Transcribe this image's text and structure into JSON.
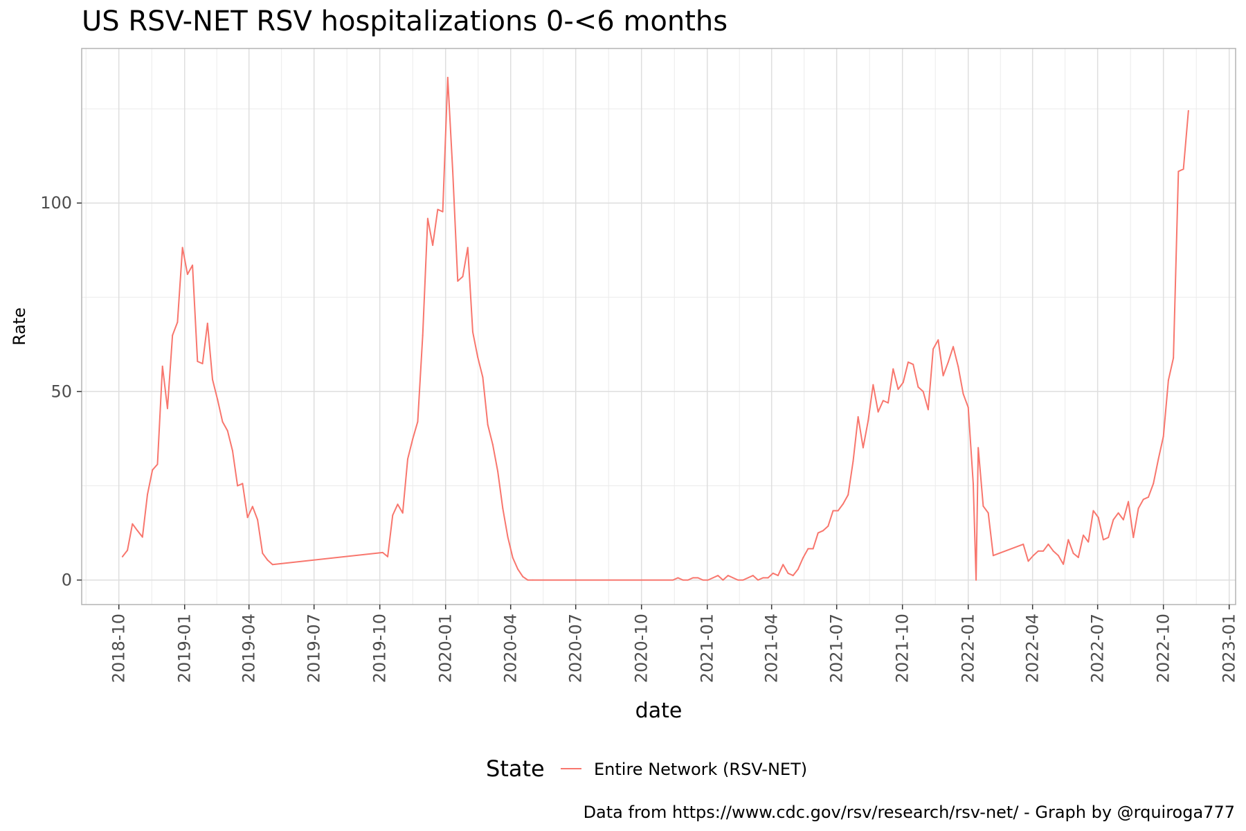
{
  "chart_data": {
    "type": "line",
    "title": "US RSV-NET RSV hospitalizations 0-<6 months",
    "xlabel": "date",
    "ylabel": "Rate",
    "caption": "Data from https://www.cdc.gov/rsv/research/rsv-net/ - Graph by @rquiroga777",
    "legend": {
      "title": "State",
      "position": "bottom"
    },
    "x_scale": "date",
    "xlim": [
      "2018-08-10",
      "2023-01-10"
    ],
    "ylim": [
      -6.5,
      141
    ],
    "grid": true,
    "x_ticks": [
      "2018-10",
      "2019-01",
      "2019-04",
      "2019-07",
      "2019-10",
      "2020-01",
      "2020-04",
      "2020-07",
      "2020-10",
      "2021-01",
      "2021-04",
      "2021-07",
      "2021-10",
      "2022-01",
      "2022-04",
      "2022-07",
      "2022-10",
      "2023-01"
    ],
    "y_ticks": [
      0,
      50,
      100
    ],
    "series": [
      {
        "name": "Entire Network (RSV-NET)",
        "color": "#F8766D",
        "points": [
          [
            "2018-10-06",
            6.2
          ],
          [
            "2018-10-13",
            7.9
          ],
          [
            "2018-10-20",
            14.9
          ],
          [
            "2018-10-27",
            13.1
          ],
          [
            "2018-11-03",
            11.4
          ],
          [
            "2018-11-10",
            22.7
          ],
          [
            "2018-11-17",
            29.2
          ],
          [
            "2018-11-24",
            30.7
          ],
          [
            "2018-12-01",
            56.7
          ],
          [
            "2018-12-08",
            45.5
          ],
          [
            "2018-12-15",
            64.9
          ],
          [
            "2018-12-22",
            68.4
          ],
          [
            "2018-12-29",
            88.2
          ],
          [
            "2019-01-05",
            81.1
          ],
          [
            "2019-01-12",
            83.5
          ],
          [
            "2019-01-19",
            58.0
          ],
          [
            "2019-01-26",
            57.4
          ],
          [
            "2019-02-02",
            68.1
          ],
          [
            "2019-02-09",
            53.2
          ],
          [
            "2019-02-16",
            47.9
          ],
          [
            "2019-02-23",
            42.0
          ],
          [
            "2019-03-02",
            39.6
          ],
          [
            "2019-03-09",
            34.3
          ],
          [
            "2019-03-16",
            25.0
          ],
          [
            "2019-03-23",
            25.6
          ],
          [
            "2019-03-30",
            16.6
          ],
          [
            "2019-04-06",
            19.5
          ],
          [
            "2019-04-13",
            16.0
          ],
          [
            "2019-04-20",
            7.1
          ],
          [
            "2019-04-27",
            5.3
          ],
          [
            "2019-05-04",
            4.1
          ],
          [
            "2019-10-05",
            7.3
          ],
          [
            "2019-10-12",
            6.2
          ],
          [
            "2019-10-19",
            17.2
          ],
          [
            "2019-10-26",
            20.1
          ],
          [
            "2019-11-02",
            17.8
          ],
          [
            "2019-11-09",
            32.1
          ],
          [
            "2019-11-16",
            37.4
          ],
          [
            "2019-11-23",
            42.0
          ],
          [
            "2019-11-30",
            64.9
          ],
          [
            "2019-12-07",
            95.9
          ],
          [
            "2019-12-14",
            88.8
          ],
          [
            "2019-12-21",
            98.3
          ],
          [
            "2019-12-28",
            97.7
          ],
          [
            "2020-01-04",
            133.3
          ],
          [
            "2020-01-11",
            108.4
          ],
          [
            "2020-01-18",
            79.3
          ],
          [
            "2020-01-25",
            80.5
          ],
          [
            "2020-02-01",
            88.2
          ],
          [
            "2020-02-08",
            65.8
          ],
          [
            "2020-02-15",
            59.1
          ],
          [
            "2020-02-22",
            53.8
          ],
          [
            "2020-02-29",
            41.2
          ],
          [
            "2020-03-07",
            35.9
          ],
          [
            "2020-03-14",
            28.8
          ],
          [
            "2020-03-21",
            19.0
          ],
          [
            "2020-03-28",
            11.4
          ],
          [
            "2020-04-04",
            5.9
          ],
          [
            "2020-04-11",
            2.9
          ],
          [
            "2020-04-18",
            0.9
          ],
          [
            "2020-04-25",
            0.0
          ],
          [
            "2020-05-02",
            0.0
          ],
          [
            "2020-11-14",
            0.0
          ],
          [
            "2020-11-21",
            0.6
          ],
          [
            "2020-11-28",
            0.0
          ],
          [
            "2020-12-05",
            0.0
          ],
          [
            "2020-12-12",
            0.6
          ],
          [
            "2020-12-19",
            0.6
          ],
          [
            "2020-12-26",
            0.0
          ],
          [
            "2021-01-02",
            0.0
          ],
          [
            "2021-01-09",
            0.6
          ],
          [
            "2021-01-16",
            1.2
          ],
          [
            "2021-01-23",
            0.0
          ],
          [
            "2021-01-30",
            1.2
          ],
          [
            "2021-02-06",
            0.6
          ],
          [
            "2021-02-13",
            0.0
          ],
          [
            "2021-02-20",
            0.0
          ],
          [
            "2021-02-27",
            0.6
          ],
          [
            "2021-03-06",
            1.2
          ],
          [
            "2021-03-13",
            0.0
          ],
          [
            "2021-03-20",
            0.6
          ],
          [
            "2021-03-27",
            0.6
          ],
          [
            "2021-04-03",
            1.8
          ],
          [
            "2021-04-10",
            1.2
          ],
          [
            "2021-04-17",
            4.1
          ],
          [
            "2021-04-24",
            1.8
          ],
          [
            "2021-05-01",
            1.2
          ],
          [
            "2021-05-08",
            2.9
          ],
          [
            "2021-05-15",
            5.9
          ],
          [
            "2021-05-22",
            8.3
          ],
          [
            "2021-05-29",
            8.3
          ],
          [
            "2021-06-05",
            12.5
          ],
          [
            "2021-06-12",
            13.1
          ],
          [
            "2021-06-19",
            14.3
          ],
          [
            "2021-06-26",
            18.4
          ],
          [
            "2021-07-03",
            18.4
          ],
          [
            "2021-07-10",
            20.2
          ],
          [
            "2021-07-17",
            22.6
          ],
          [
            "2021-07-24",
            31.5
          ],
          [
            "2021-07-31",
            43.3
          ],
          [
            "2021-08-07",
            35.1
          ],
          [
            "2021-08-14",
            42.2
          ],
          [
            "2021-08-21",
            51.8
          ],
          [
            "2021-08-28",
            44.6
          ],
          [
            "2021-09-04",
            47.6
          ],
          [
            "2021-09-11",
            47.0
          ],
          [
            "2021-09-18",
            56.0
          ],
          [
            "2021-09-25",
            50.6
          ],
          [
            "2021-10-02",
            52.4
          ],
          [
            "2021-10-09",
            57.8
          ],
          [
            "2021-10-16",
            57.2
          ],
          [
            "2021-10-23",
            51.2
          ],
          [
            "2021-10-30",
            50.0
          ],
          [
            "2021-11-06",
            45.2
          ],
          [
            "2021-11-13",
            61.3
          ],
          [
            "2021-11-20",
            63.7
          ],
          [
            "2021-11-27",
            54.2
          ],
          [
            "2021-12-04",
            57.8
          ],
          [
            "2021-12-11",
            61.9
          ],
          [
            "2021-12-18",
            56.6
          ],
          [
            "2021-12-25",
            49.4
          ],
          [
            "2022-01-01",
            45.8
          ],
          [
            "2022-01-08",
            25.6
          ],
          [
            "2022-01-12",
            0.0
          ],
          [
            "2022-01-15",
            35.1
          ],
          [
            "2022-01-22",
            19.6
          ],
          [
            "2022-01-29",
            17.8
          ],
          [
            "2022-02-05",
            6.5
          ],
          [
            "2022-03-19",
            9.5
          ],
          [
            "2022-03-26",
            5.0
          ],
          [
            "2022-04-02",
            6.5
          ],
          [
            "2022-04-09",
            7.7
          ],
          [
            "2022-04-16",
            7.7
          ],
          [
            "2022-04-23",
            9.5
          ],
          [
            "2022-04-30",
            7.7
          ],
          [
            "2022-05-07",
            6.5
          ],
          [
            "2022-05-14",
            4.2
          ],
          [
            "2022-05-21",
            10.7
          ],
          [
            "2022-05-28",
            7.1
          ],
          [
            "2022-06-04",
            6.0
          ],
          [
            "2022-06-11",
            11.9
          ],
          [
            "2022-06-18",
            10.1
          ],
          [
            "2022-06-25",
            18.4
          ],
          [
            "2022-07-02",
            16.6
          ],
          [
            "2022-07-09",
            10.7
          ],
          [
            "2022-07-16",
            11.3
          ],
          [
            "2022-07-23",
            16.0
          ],
          [
            "2022-07-30",
            17.8
          ],
          [
            "2022-08-06",
            16.0
          ],
          [
            "2022-08-13",
            20.8
          ],
          [
            "2022-08-20",
            11.3
          ],
          [
            "2022-08-27",
            19.0
          ],
          [
            "2022-09-03",
            21.4
          ],
          [
            "2022-09-10",
            22.0
          ],
          [
            "2022-09-17",
            25.6
          ],
          [
            "2022-09-24",
            32.1
          ],
          [
            "2022-10-01",
            38.1
          ],
          [
            "2022-10-08",
            53.0
          ],
          [
            "2022-10-15",
            58.9
          ],
          [
            "2022-10-22",
            108.4
          ],
          [
            "2022-10-29",
            109.0
          ],
          [
            "2022-11-05",
            124.5
          ]
        ]
      }
    ]
  }
}
